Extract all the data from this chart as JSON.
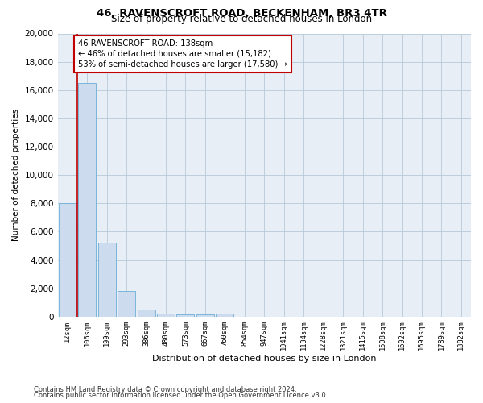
{
  "title1": "46, RAVENSCROFT ROAD, BECKENHAM, BR3 4TR",
  "title2": "Size of property relative to detached houses in London",
  "xlabel": "Distribution of detached houses by size in London",
  "ylabel": "Number of detached properties",
  "categories": [
    "12sqm",
    "106sqm",
    "199sqm",
    "293sqm",
    "386sqm",
    "480sqm",
    "573sqm",
    "667sqm",
    "760sqm",
    "854sqm",
    "947sqm",
    "1041sqm",
    "1134sqm",
    "1228sqm",
    "1321sqm",
    "1415sqm",
    "1508sqm",
    "1602sqm",
    "1695sqm",
    "1789sqm",
    "1882sqm"
  ],
  "values": [
    8000,
    16500,
    5200,
    1800,
    500,
    200,
    150,
    150,
    200,
    0,
    0,
    0,
    0,
    0,
    0,
    0,
    0,
    0,
    0,
    0,
    0
  ],
  "bar_color": "#ccdcee",
  "bar_edge_color": "#6baed6",
  "vline_x": 0.5,
  "vline_color": "#c00000",
  "annotation_text": "46 RAVENSCROFT ROAD: 138sqm\n← 46% of detached houses are smaller (15,182)\n53% of semi-detached houses are larger (17,580) →",
  "annotation_box_color": "#c00000",
  "ylim": [
    0,
    20000
  ],
  "yticks": [
    0,
    2000,
    4000,
    6000,
    8000,
    10000,
    12000,
    14000,
    16000,
    18000,
    20000
  ],
  "footer1": "Contains HM Land Registry data © Crown copyright and database right 2024.",
  "footer2": "Contains public sector information licensed under the Open Government Licence v3.0.",
  "bg_color": "#ffffff",
  "plot_bg_color": "#e8eef5",
  "grid_color": "#b8c8d8"
}
